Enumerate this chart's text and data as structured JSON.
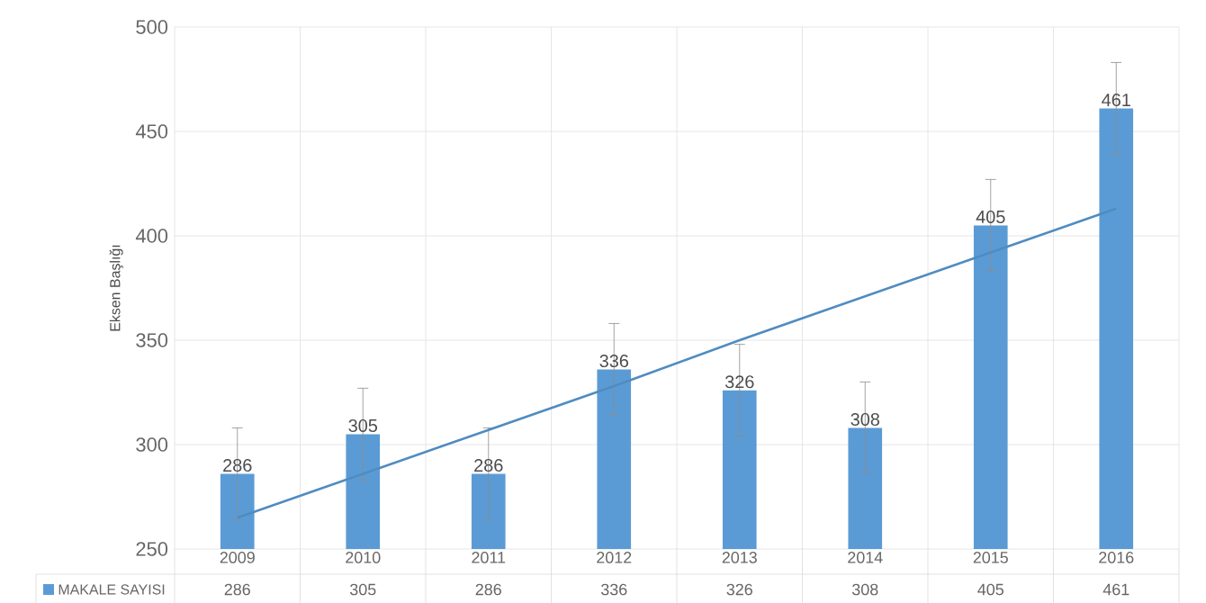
{
  "chart_data": {
    "type": "bar",
    "ylabel": "Eksen Başlığı",
    "categories": [
      "2009",
      "2010",
      "2011",
      "2012",
      "2013",
      "2014",
      "2015",
      "2016"
    ],
    "series": [
      {
        "name": "MAKALE SAYISI",
        "color": "#5b9bd5",
        "values": [
          286,
          305,
          286,
          336,
          326,
          308,
          405,
          461
        ],
        "errors": [
          22,
          22,
          22,
          22,
          22,
          22,
          22,
          22
        ],
        "value_labels": [
          "286",
          "305",
          "286",
          "336",
          "326",
          "308",
          "405",
          "461"
        ]
      },
      {
        "type": "line",
        "color": "#4f8cc0",
        "values": [
          265,
          286,
          307,
          328,
          350,
          371,
          392,
          413
        ]
      }
    ],
    "ylim": [
      250,
      500
    ],
    "yticks": [
      250,
      300,
      350,
      400,
      450,
      500
    ],
    "grid": true,
    "legend": "bottom"
  }
}
